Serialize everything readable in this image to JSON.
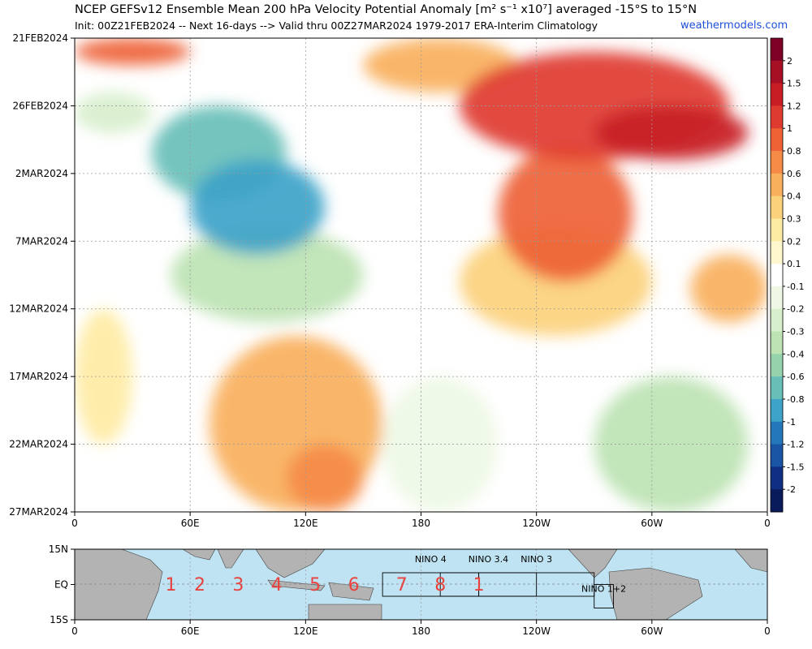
{
  "header": {
    "title": "NCEP GEFSv12 Ensemble Mean 200 hPa Velocity Potential Anomaly [m² s⁻¹ x10⁷] averaged -15°S to 15°N",
    "subtitle": "Init: 00Z21FEB2024 -- Next 16-days --> Valid thru 00Z27MAR2024 1979-2017 ERA-Interim Climatology",
    "brand": "weathermodels.com"
  },
  "chart_data": [
    {
      "type": "heatmap",
      "x_tick_labels": [
        "0",
        "60E",
        "120E",
        "180",
        "120W",
        "60W",
        "0"
      ],
      "x_ticks_deg": [
        0,
        60,
        120,
        180,
        240,
        300,
        360
      ],
      "xlim": [
        0,
        360
      ],
      "y_tick_labels": [
        "21FEB2024",
        "26FEB2024",
        "2MAR2024",
        "7MAR2024",
        "12MAR2024",
        "17MAR2024",
        "22MAR2024",
        "27MAR2024"
      ],
      "ylim_days": [
        0,
        35
      ],
      "y_ticks_days": [
        0,
        5,
        10,
        15,
        20,
        25,
        30,
        35
      ],
      "grid": true,
      "colorbar": {
        "labels": [
          "2",
          "1.5",
          "1.2",
          "1",
          "0.8",
          "0.6",
          "0.4",
          "0.3",
          "0.2",
          "0.1",
          "-0.1",
          "-0.2",
          "-0.3",
          "-0.4",
          "-0.6",
          "-0.8",
          "-1",
          "-1.2",
          "-1.5",
          "-2"
        ],
        "colors": [
          "#7f0026",
          "#a60f24",
          "#c81d25",
          "#df3a2f",
          "#ee6236",
          "#f58b47",
          "#f9b05d",
          "#fcd17c",
          "#feeba3",
          "#fff8cf",
          "#ffffff",
          "#eef8e5",
          "#d7efcc",
          "#bde3b3",
          "#95d3ad",
          "#68bfb8",
          "#3ea3c9",
          "#2477b9",
          "#1a54a4",
          "#102f82",
          "#0a1b5c"
        ]
      },
      "anomaly_features": [
        {
          "lon_start": 0,
          "lon_end": 60,
          "day_start": 0,
          "day_end": 2,
          "value": 0.9
        },
        {
          "lon_start": 150,
          "lon_end": 230,
          "day_start": 0,
          "day_end": 4,
          "value": 0.5
        },
        {
          "lon_start": 200,
          "lon_end": 340,
          "day_start": 1,
          "day_end": 9,
          "value": 1.0
        },
        {
          "lon_start": 270,
          "lon_end": 350,
          "day_start": 5,
          "day_end": 9,
          "value": 1.2
        },
        {
          "lon_start": 220,
          "lon_end": 290,
          "day_start": 8,
          "day_end": 18,
          "value": 0.8
        },
        {
          "lon_start": 200,
          "lon_end": 300,
          "day_start": 14,
          "day_end": 22,
          "value": 0.3
        },
        {
          "lon_start": 320,
          "lon_end": 360,
          "day_start": 16,
          "day_end": 21,
          "value": 0.4
        },
        {
          "lon_start": 40,
          "lon_end": 110,
          "day_start": 5,
          "day_end": 12,
          "value": -0.7
        },
        {
          "lon_start": 60,
          "lon_end": 130,
          "day_start": 9,
          "day_end": 16,
          "value": -1.0
        },
        {
          "lon_start": 50,
          "lon_end": 150,
          "day_start": 14,
          "day_end": 21,
          "value": -0.4
        },
        {
          "lon_start": 0,
          "lon_end": 40,
          "day_start": 4,
          "day_end": 7,
          "value": -0.3
        },
        {
          "lon_start": 0,
          "lon_end": 30,
          "day_start": 20,
          "day_end": 30,
          "value": 0.2
        },
        {
          "lon_start": 70,
          "lon_end": 160,
          "day_start": 22,
          "day_end": 35,
          "value": 0.4
        },
        {
          "lon_start": 110,
          "lon_end": 150,
          "day_start": 30,
          "day_end": 35,
          "value": 0.6
        },
        {
          "lon_start": 270,
          "lon_end": 350,
          "day_start": 25,
          "day_end": 35,
          "value": -0.4
        },
        {
          "lon_start": 160,
          "lon_end": 220,
          "day_start": 25,
          "day_end": 35,
          "value": -0.2
        }
      ]
    },
    {
      "type": "map",
      "y_tick_labels": [
        "15N",
        "EQ",
        "15S"
      ],
      "x_tick_labels": [
        "0",
        "60E",
        "120E",
        "180",
        "120W",
        "60W",
        "0"
      ],
      "phases": [
        {
          "label": "1",
          "lon": 50
        },
        {
          "label": "2",
          "lon": 65
        },
        {
          "label": "3",
          "lon": 85
        },
        {
          "label": "4",
          "lon": 105
        },
        {
          "label": "5",
          "lon": 125
        },
        {
          "label": "6",
          "lon": 145
        },
        {
          "label": "7",
          "lon": 170
        },
        {
          "label": "8",
          "lon": 190
        },
        {
          "label": "1",
          "lon": 210
        }
      ],
      "nino_regions": [
        {
          "label": "NINO 4",
          "lon_start": 160,
          "lon_end": 210,
          "lat_start": -5,
          "lat_end": 5
        },
        {
          "label": "NINO 3.4",
          "lon_start": 190,
          "lon_end": 240,
          "lat_start": -5,
          "lat_end": 5
        },
        {
          "label": "NINO 3",
          "lon_start": 210,
          "lon_end": 270,
          "lat_start": -5,
          "lat_end": 5
        },
        {
          "label": "NINO 1+2",
          "lon_start": 270,
          "lon_end": 280,
          "lat_start": -10,
          "lat_end": 0
        }
      ]
    }
  ]
}
